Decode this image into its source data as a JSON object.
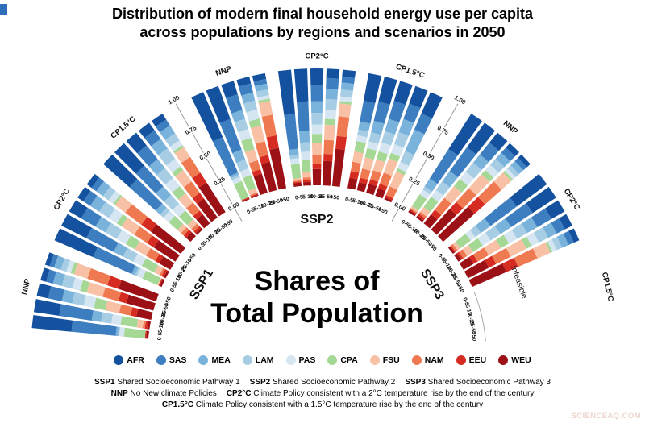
{
  "title": {
    "line1": "Distribution of modern final household energy use per capita",
    "line2": "across populations by regions and scenarios in 2050"
  },
  "center_label": {
    "line1": "Shares of",
    "line2": "Total Population"
  },
  "watermark": "SCIENCEAQ.COM",
  "legend": {
    "items": [
      {
        "label": "AFR",
        "color": "#14519e"
      },
      {
        "label": "SAS",
        "color": "#3d7ec0"
      },
      {
        "label": "MEA",
        "color": "#79b2da"
      },
      {
        "label": "LAM",
        "color": "#a7cde4"
      },
      {
        "label": "PAS",
        "color": "#d5e6f2"
      },
      {
        "label": "CPA",
        "color": "#a5d795"
      },
      {
        "label": "FSU",
        "color": "#f8c0a4"
      },
      {
        "label": "NAM",
        "color": "#ef7a52"
      },
      {
        "label": "EEU",
        "color": "#d62b21"
      },
      {
        "label": "WEU",
        "color": "#9c1116"
      }
    ]
  },
  "footnotes": {
    "line1": [
      [
        "SSP1",
        "Shared Socioeconomic Pathway 1"
      ],
      [
        "SSP2",
        "Shared Socioeconomic Pathway 2"
      ],
      [
        "SSP3",
        "Shared Socioeconomic Pathway 3"
      ]
    ],
    "line2": [
      [
        "NNP",
        "No New climate Policies"
      ],
      [
        "CP2°C",
        "Climate Policy consistent with a 2°C temperature rise by the end of the century"
      ]
    ],
    "line3": [
      [
        "CP1.5°C",
        "Climate Policy consistent with a 1.5°C temperature rise by the end of the century"
      ]
    ]
  },
  "chart_data": {
    "type": "radial-stacked-bar",
    "title": "Distribution of modern final household energy use per capita across populations by regions and scenarios in 2050",
    "center_text": "Shares of Total Population",
    "value_axis": {
      "ticks": [
        "0.00",
        "0.25",
        "0.50",
        "0.75",
        "1.00"
      ],
      "range": [
        0,
        1
      ],
      "unit": "share of total population"
    },
    "bin_labels": [
      "0-5",
      "5-10",
      "10-25",
      "25-50",
      ">50"
    ],
    "regions": [
      "AFR",
      "SAS",
      "MEA",
      "LAM",
      "PAS",
      "CPA",
      "FSU",
      "NAM",
      "EEU",
      "WEU"
    ],
    "region_colors": [
      "#14519e",
      "#3d7ec0",
      "#79b2da",
      "#a7cde4",
      "#d5e6f2",
      "#a5d795",
      "#f8c0a4",
      "#ef7a52",
      "#d62b21",
      "#9c1116"
    ],
    "stack_order_note": "each bar stacks from center outward: WEU (inner) to AFR (outer); values are estimated shares per bin summing to 1.00",
    "groups": [
      {
        "name": "SSP1",
        "scenarios": [
          {
            "label": "NNP",
            "bars": [
              [
                0.34,
                0.38,
                0.02,
                0.01,
                0.04,
                0.18,
                0.0,
                0.0,
                0.01,
                0.02
              ],
              [
                0.22,
                0.28,
                0.08,
                0.09,
                0.08,
                0.14,
                0.05,
                0.02,
                0.02,
                0.02
              ],
              [
                0.1,
                0.12,
                0.09,
                0.1,
                0.09,
                0.1,
                0.12,
                0.1,
                0.05,
                0.13
              ],
              [
                0.05,
                0.06,
                0.08,
                0.09,
                0.07,
                0.06,
                0.14,
                0.14,
                0.07,
                0.24
              ],
              [
                0.04,
                0.04,
                0.06,
                0.05,
                0.04,
                0.03,
                0.12,
                0.18,
                0.1,
                0.34
              ]
            ]
          },
          {
            "label": "CP2°C",
            "bars": [
              [
                0.36,
                0.36,
                0.03,
                0.02,
                0.05,
                0.14,
                0.01,
                0.0,
                0.01,
                0.02
              ],
              [
                0.24,
                0.26,
                0.09,
                0.1,
                0.08,
                0.12,
                0.05,
                0.02,
                0.02,
                0.02
              ],
              [
                0.12,
                0.14,
                0.1,
                0.11,
                0.09,
                0.09,
                0.11,
                0.09,
                0.04,
                0.11
              ],
              [
                0.06,
                0.07,
                0.09,
                0.1,
                0.08,
                0.05,
                0.13,
                0.13,
                0.07,
                0.22
              ],
              [
                0.05,
                0.05,
                0.07,
                0.06,
                0.05,
                0.02,
                0.11,
                0.17,
                0.1,
                0.32
              ]
            ]
          },
          {
            "label": "CP1.5°C",
            "bars": [
              [
                0.3,
                0.3,
                0.05,
                0.04,
                0.06,
                0.1,
                0.04,
                0.03,
                0.03,
                0.05
              ],
              [
                0.26,
                0.24,
                0.1,
                0.1,
                0.08,
                0.1,
                0.05,
                0.03,
                0.02,
                0.02
              ],
              [
                0.14,
                0.15,
                0.1,
                0.11,
                0.09,
                0.08,
                0.1,
                0.09,
                0.04,
                0.1
              ],
              [
                0.08,
                0.09,
                0.1,
                0.11,
                0.08,
                0.04,
                0.12,
                0.12,
                0.06,
                0.2
              ],
              [
                0.06,
                0.06,
                0.08,
                0.07,
                0.05,
                0.02,
                0.1,
                0.16,
                0.1,
                0.3
              ]
            ]
          }
        ]
      },
      {
        "name": "SSP2",
        "scenarios": [
          {
            "label": "NNP",
            "bars": [
              [
                0.42,
                0.33,
                0.02,
                0.02,
                0.04,
                0.15,
                0.0,
                0.0,
                0.01,
                0.01
              ],
              [
                0.3,
                0.28,
                0.09,
                0.08,
                0.06,
                0.12,
                0.04,
                0.01,
                0.01,
                0.01
              ],
              [
                0.12,
                0.14,
                0.08,
                0.09,
                0.08,
                0.1,
                0.1,
                0.08,
                0.04,
                0.17
              ],
              [
                0.06,
                0.08,
                0.07,
                0.08,
                0.08,
                0.06,
                0.14,
                0.12,
                0.06,
                0.25
              ],
              [
                0.05,
                0.04,
                0.05,
                0.05,
                0.03,
                0.02,
                0.12,
                0.18,
                0.11,
                0.35
              ]
            ]
          },
          {
            "label": "CP2°C",
            "bars": [
              [
                0.38,
                0.3,
                0.05,
                0.03,
                0.05,
                0.12,
                0.02,
                0.01,
                0.01,
                0.03
              ],
              [
                0.28,
                0.25,
                0.1,
                0.08,
                0.07,
                0.1,
                0.05,
                0.02,
                0.02,
                0.03
              ],
              [
                0.14,
                0.14,
                0.1,
                0.1,
                0.08,
                0.08,
                0.1,
                0.08,
                0.04,
                0.14
              ],
              [
                0.08,
                0.09,
                0.09,
                0.09,
                0.08,
                0.05,
                0.13,
                0.12,
                0.06,
                0.21
              ],
              [
                0.06,
                0.05,
                0.06,
                0.06,
                0.04,
                0.02,
                0.11,
                0.17,
                0.11,
                0.32
              ]
            ]
          },
          {
            "label": "CP1.5°C",
            "bars": [
              [
                0.24,
                0.18,
                0.07,
                0.05,
                0.05,
                0.09,
                0.09,
                0.08,
                0.06,
                0.09
              ],
              [
                0.22,
                0.17,
                0.1,
                0.08,
                0.06,
                0.08,
                0.1,
                0.08,
                0.04,
                0.07
              ],
              [
                0.18,
                0.16,
                0.11,
                0.1,
                0.08,
                0.07,
                0.1,
                0.08,
                0.04,
                0.08
              ],
              [
                0.16,
                0.14,
                0.12,
                0.11,
                0.08,
                0.05,
                0.13,
                0.1,
                0.04,
                0.07
              ],
              [
                0.2,
                0.15,
                0.2,
                0.1,
                0.06,
                0.03,
                0.14,
                0.08,
                0.02,
                0.02
              ]
            ]
          }
        ]
      },
      {
        "name": "SSP3",
        "scenarios": [
          {
            "label": "NNP",
            "bars": [
              [
                0.36,
                0.3,
                0.08,
                0.03,
                0.05,
                0.12,
                0.02,
                0.01,
                0.01,
                0.02
              ],
              [
                0.26,
                0.25,
                0.11,
                0.09,
                0.07,
                0.11,
                0.05,
                0.02,
                0.02,
                0.02
              ],
              [
                0.11,
                0.13,
                0.09,
                0.1,
                0.08,
                0.08,
                0.13,
                0.13,
                0.05,
                0.1
              ],
              [
                0.05,
                0.06,
                0.07,
                0.07,
                0.06,
                0.05,
                0.16,
                0.16,
                0.08,
                0.24
              ],
              [
                0.04,
                0.04,
                0.05,
                0.04,
                0.03,
                0.02,
                0.11,
                0.19,
                0.12,
                0.36
              ]
            ]
          },
          {
            "label": "CP2°C",
            "bars": [
              [
                0.32,
                0.28,
                0.1,
                0.06,
                0.05,
                0.11,
                0.03,
                0.02,
                0.01,
                0.02
              ],
              [
                0.24,
                0.22,
                0.11,
                0.1,
                0.08,
                0.1,
                0.06,
                0.04,
                0.02,
                0.03
              ],
              [
                0.13,
                0.14,
                0.1,
                0.1,
                0.08,
                0.08,
                0.12,
                0.11,
                0.04,
                0.1
              ],
              [
                0.07,
                0.08,
                0.08,
                0.09,
                0.07,
                0.05,
                0.15,
                0.14,
                0.07,
                0.2
              ],
              [
                0.05,
                0.05,
                0.06,
                0.05,
                0.04,
                0.02,
                0.12,
                0.18,
                0.11,
                0.32
              ]
            ]
          },
          {
            "label": "CP1.5°C",
            "infeasible": true,
            "infeasible_label": "Infeasible",
            "bars": null
          }
        ]
      }
    ]
  }
}
